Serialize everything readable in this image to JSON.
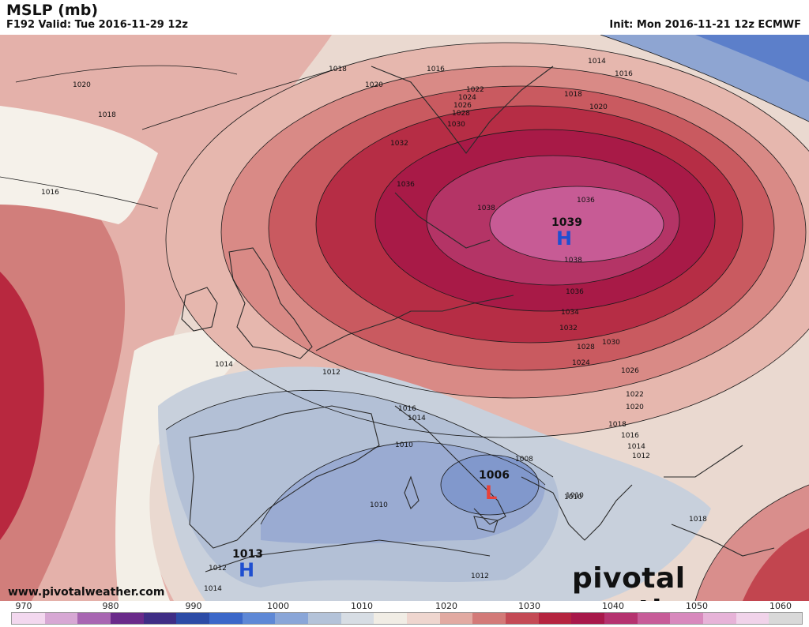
{
  "header": {
    "title": "MSLP (mb)",
    "valid": "F192 Valid: Tue 2016-11-29 12z",
    "init": "Init: Mon 2016-11-21 12z ECMWF"
  },
  "footer": {
    "website": "www.pivotalweather.com",
    "brand": "pivotal weather"
  },
  "pressure_centers": [
    {
      "type": "H",
      "value": "1039"
    },
    {
      "type": "L",
      "value": "1006"
    },
    {
      "type": "H",
      "value": "1013"
    }
  ],
  "isobar_labels": [
    "1020",
    "1018",
    "1016",
    "1018",
    "1016",
    "1020",
    "1014",
    "1016",
    "1022",
    "1024",
    "1026",
    "1028",
    "1030",
    "1032",
    "1018",
    "1020",
    "1036",
    "1038",
    "1036",
    "1038",
    "1036",
    "1034",
    "1032",
    "1030",
    "1028",
    "1026",
    "1024",
    "1022",
    "1020",
    "1018",
    "1016",
    "1014",
    "1012",
    "1012",
    "1014",
    "1016",
    "1014",
    "1010",
    "1008",
    "1010",
    "1010",
    "1010",
    "1018",
    "1012",
    "1014",
    "1012"
  ],
  "colorbar": {
    "labels": [
      "970",
      "980",
      "990",
      "1000",
      "1010",
      "1020",
      "1030",
      "1040",
      "1050",
      "1060"
    ],
    "colors": [
      "#f3d8ef",
      "#d7a8d4",
      "#a866b2",
      "#6a2a8a",
      "#3f2d85",
      "#2c4ba6",
      "#3b67c9",
      "#5e88d6",
      "#8aa6d8",
      "#b4c3d9",
      "#d7dde4",
      "#f1ede5",
      "#efd6cf",
      "#e2aaa2",
      "#d37a78",
      "#c44a55",
      "#b5243f",
      "#a8184a",
      "#b5326f",
      "#c75c98",
      "#d889bd",
      "#e7b3d8",
      "#f1d3ea",
      "#d9d9d9"
    ],
    "accent_high": "#1f4fd0",
    "accent_low": "#e8413a"
  }
}
